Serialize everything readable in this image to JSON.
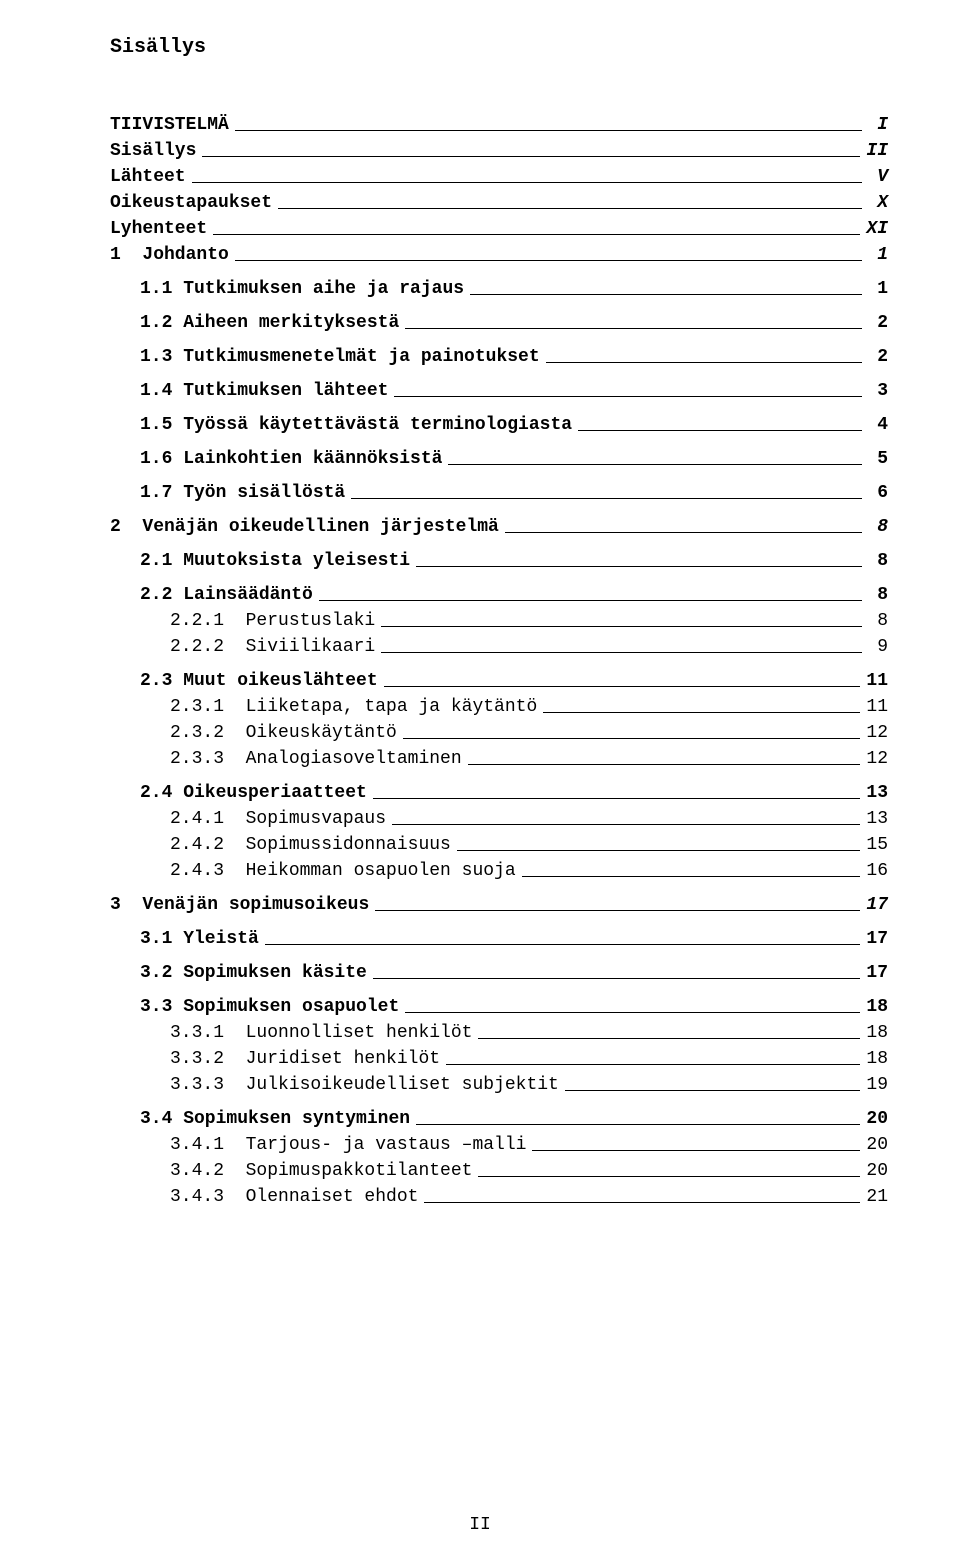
{
  "doc_title": "Sisällys",
  "footer": "II",
  "entries": [
    {
      "label": "TIIVISTELMÄ",
      "page": "I",
      "bold": true,
      "italic_page": true,
      "level": 0,
      "gap": true
    },
    {
      "label": "Sisällys",
      "page": "II",
      "bold": true,
      "italic_page": true,
      "level": 0
    },
    {
      "label": "Lähteet",
      "page": "V",
      "bold": true,
      "italic_page": true,
      "level": 0
    },
    {
      "label": "Oikeustapaukset",
      "page": "X",
      "bold": true,
      "italic_page": true,
      "level": 0
    },
    {
      "label": "Lyhenteet",
      "page": "XI",
      "bold": true,
      "italic_page": true,
      "level": 0
    },
    {
      "label": "1  Johdanto",
      "page": "1",
      "bold": true,
      "italic_page": true,
      "level": 0
    },
    {
      "label": "1.1 Tutkimuksen aihe ja rajaus",
      "page": "1",
      "bold": true,
      "level": 1,
      "gap": true
    },
    {
      "label": "1.2 Aiheen merkityksestä",
      "page": "2",
      "bold": true,
      "level": 1,
      "gap": true
    },
    {
      "label": "1.3 Tutkimusmenetelmät ja painotukset",
      "page": "2",
      "bold": true,
      "level": 1,
      "gap": true
    },
    {
      "label": "1.4 Tutkimuksen lähteet",
      "page": "3",
      "bold": true,
      "level": 1,
      "gap": true
    },
    {
      "label": "1.5 Työssä käytettävästä terminologiasta",
      "page": "4",
      "bold": true,
      "level": 1,
      "gap": true
    },
    {
      "label": "1.6 Lainkohtien käännöksistä",
      "page": "5",
      "bold": true,
      "level": 1,
      "gap": true
    },
    {
      "label": "1.7 Työn sisällöstä",
      "page": "6",
      "bold": true,
      "level": 1,
      "gap": true
    },
    {
      "label": "2  Venäjän oikeudellinen järjestelmä",
      "page": "8",
      "bold": true,
      "italic_page": true,
      "level": 0,
      "gap": true
    },
    {
      "label": "2.1 Muutoksista yleisesti",
      "page": "8",
      "bold": true,
      "level": 1,
      "gap": true
    },
    {
      "label": "2.2 Lainsäädäntö",
      "page": "8",
      "bold": true,
      "level": 1,
      "gap": true
    },
    {
      "label": "2.2.1  Perustuslaki",
      "page": "8",
      "level": 2
    },
    {
      "label": "2.2.2  Siviilikaari",
      "page": "9",
      "level": 2
    },
    {
      "label": "2.3 Muut oikeuslähteet",
      "page": "11",
      "bold": true,
      "level": 1,
      "gap": true
    },
    {
      "label": "2.3.1  Liiketapa, tapa ja käytäntö",
      "page": "11",
      "level": 2
    },
    {
      "label": "2.3.2  Oikeuskäytäntö",
      "page": "12",
      "level": 2
    },
    {
      "label": "2.3.3  Analogiasoveltaminen",
      "page": "12",
      "level": 2
    },
    {
      "label": "2.4 Oikeusperiaatteet",
      "page": "13",
      "bold": true,
      "level": 1,
      "gap": true
    },
    {
      "label": "2.4.1  Sopimusvapaus",
      "page": "13",
      "level": 2
    },
    {
      "label": "2.4.2  Sopimussidonnaisuus",
      "page": "15",
      "level": 2
    },
    {
      "label": "2.4.3  Heikomman osapuolen suoja",
      "page": "16",
      "level": 2
    },
    {
      "label": "3  Venäjän sopimusoikeus",
      "page": "17",
      "bold": true,
      "italic_page": true,
      "level": 0,
      "gap": true
    },
    {
      "label": "3.1 Yleistä",
      "page": "17",
      "bold": true,
      "level": 1,
      "gap": true
    },
    {
      "label": "3.2 Sopimuksen käsite",
      "page": "17",
      "bold": true,
      "level": 1,
      "gap": true
    },
    {
      "label": "3.3 Sopimuksen osapuolet",
      "page": "18",
      "bold": true,
      "level": 1,
      "gap": true
    },
    {
      "label": "3.3.1  Luonnolliset henkilöt",
      "page": "18",
      "level": 2
    },
    {
      "label": "3.3.2  Juridiset henkilöt",
      "page": "18",
      "level": 2
    },
    {
      "label": "3.3.3  Julkisoikeudelliset subjektit",
      "page": "19",
      "level": 2
    },
    {
      "label": "3.4 Sopimuksen syntyminen",
      "page": "20",
      "bold": true,
      "level": 1,
      "gap": true
    },
    {
      "label": "3.4.1  Tarjous- ja vastaus –malli",
      "page": "20",
      "level": 2
    },
    {
      "label": "3.4.2  Sopimuspakkotilanteet",
      "page": "20",
      "level": 2
    },
    {
      "label": "3.4.3  Olennaiset ehdot",
      "page": "21",
      "level": 2
    }
  ]
}
